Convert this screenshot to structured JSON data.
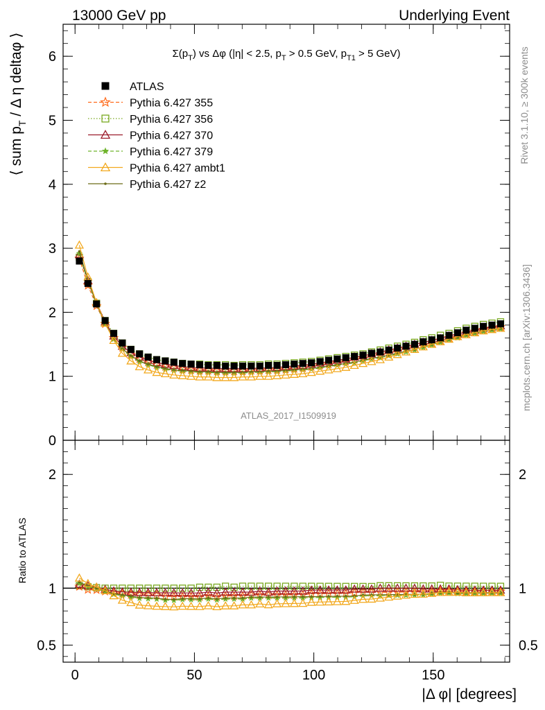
{
  "header": {
    "left": "13000 GeV pp",
    "right": "Underlying Event"
  },
  "side_labels": {
    "rivet": "Rivet 3.1.10, ≥ 300k events",
    "mcplots": "mcplots.cern.ch [arXiv:1306.3436]"
  },
  "watermark": "ATLAS_2017_I1509919",
  "colors": {
    "ATLAS": "#000000",
    "s355": "#ff6a1a",
    "s356": "#78a81e",
    "s370": "#9b1b2a",
    "s379": "#6db32a",
    "ambt1": "#f2a81d",
    "z2": "#6b6b16"
  },
  "chart_data": [
    {
      "type": "scatter",
      "title": "Σ(p_T) vs Δφ (|η| < 2.5, p_T > 0.5 GeV, p_T1 > 5 GeV)",
      "title_parts": {
        "t1": "Σ(p",
        "t1sub": "T",
        "t2": ") vs Δφ (|η| < 2.5, p",
        "t2sub": "T",
        "t3": " > 0.5 GeV, p",
        "t3sub": "T1",
        "t4": " > 5 GeV)"
      },
      "ylabel": "⟨ sum p_T / Δ η deltaφ ⟩",
      "ylabel_parts": {
        "a": "⟨ sum p",
        "sub": "T",
        "b": " / Δ η deltaφ ⟩"
      },
      "xlim": [
        -5,
        182
      ],
      "ylim": [
        0,
        6.5
      ],
      "yticks": [
        {
          "value": 0,
          "label": "0"
        },
        {
          "value": 1,
          "label": "1"
        },
        {
          "value": 2,
          "label": "2"
        },
        {
          "value": 3,
          "label": "3"
        },
        {
          "value": 4,
          "label": "4"
        },
        {
          "value": 5,
          "label": "5"
        },
        {
          "value": 6,
          "label": "6"
        }
      ],
      "legend_position": "top-left",
      "legend": [
        {
          "key": "ATLAS",
          "label": "ATLAS"
        },
        {
          "key": "s355",
          "label": "Pythia 6.427 355"
        },
        {
          "key": "s356",
          "label": "Pythia 6.427 356"
        },
        {
          "key": "s370",
          "label": "Pythia 6.427 370"
        },
        {
          "key": "s379",
          "label": "Pythia 6.427 379"
        },
        {
          "key": "ambt1",
          "label": "Pythia 6.427 ambt1"
        },
        {
          "key": "z2",
          "label": "Pythia 6.427 z2"
        }
      ],
      "x": [
        1.8,
        5.4,
        9.0,
        12.6,
        16.2,
        19.8,
        23.4,
        27.0,
        30.6,
        34.2,
        37.8,
        41.4,
        45.0,
        48.6,
        52.2,
        55.8,
        59.4,
        63.0,
        66.6,
        70.2,
        73.8,
        77.4,
        81.0,
        84.6,
        88.2,
        91.8,
        95.4,
        99.0,
        102.6,
        106.2,
        109.8,
        113.4,
        117.0,
        120.6,
        124.2,
        127.8,
        131.4,
        135.0,
        138.6,
        142.2,
        145.8,
        149.4,
        153.0,
        156.6,
        160.2,
        163.8,
        167.4,
        171.0,
        174.6,
        178.2
      ],
      "series": [
        {
          "key": "ATLAS",
          "name": "ATLAS",
          "marker": "square-filled",
          "line": "none",
          "values": [
            2.8,
            2.45,
            2.13,
            1.87,
            1.67,
            1.52,
            1.42,
            1.35,
            1.3,
            1.26,
            1.24,
            1.22,
            1.2,
            1.19,
            1.18,
            1.17,
            1.17,
            1.16,
            1.16,
            1.16,
            1.16,
            1.16,
            1.17,
            1.17,
            1.18,
            1.19,
            1.2,
            1.21,
            1.23,
            1.25,
            1.27,
            1.29,
            1.31,
            1.33,
            1.36,
            1.38,
            1.41,
            1.44,
            1.47,
            1.5,
            1.54,
            1.57,
            1.6,
            1.64,
            1.68,
            1.72,
            1.75,
            1.78,
            1.8,
            1.82
          ]
        },
        {
          "key": "s355",
          "name": "Pythia 6.427 355",
          "marker": "star-open",
          "line": "dashed",
          "values": [
            2.84,
            2.42,
            2.1,
            1.82,
            1.6,
            1.45,
            1.34,
            1.27,
            1.22,
            1.18,
            1.15,
            1.13,
            1.11,
            1.1,
            1.09,
            1.09,
            1.08,
            1.08,
            1.08,
            1.08,
            1.09,
            1.09,
            1.1,
            1.1,
            1.11,
            1.12,
            1.13,
            1.15,
            1.17,
            1.19,
            1.21,
            1.23,
            1.26,
            1.28,
            1.31,
            1.33,
            1.36,
            1.39,
            1.42,
            1.45,
            1.49,
            1.52,
            1.56,
            1.6,
            1.63,
            1.67,
            1.7,
            1.73,
            1.75,
            1.77
          ]
        },
        {
          "key": "s356",
          "name": "Pythia 6.427 356",
          "marker": "square-open",
          "line": "dotted",
          "values": [
            2.86,
            2.48,
            2.14,
            1.87,
            1.67,
            1.52,
            1.42,
            1.35,
            1.3,
            1.26,
            1.24,
            1.22,
            1.2,
            1.19,
            1.19,
            1.18,
            1.18,
            1.18,
            1.17,
            1.18,
            1.18,
            1.18,
            1.19,
            1.19,
            1.2,
            1.21,
            1.22,
            1.23,
            1.25,
            1.27,
            1.29,
            1.31,
            1.33,
            1.35,
            1.38,
            1.41,
            1.44,
            1.47,
            1.5,
            1.53,
            1.57,
            1.6,
            1.64,
            1.67,
            1.71,
            1.75,
            1.78,
            1.81,
            1.83,
            1.85
          ]
        },
        {
          "key": "s370",
          "name": "Pythia 6.427 370",
          "marker": "triangle-open",
          "line": "solid",
          "values": [
            2.9,
            2.5,
            2.15,
            1.85,
            1.63,
            1.47,
            1.37,
            1.3,
            1.25,
            1.21,
            1.19,
            1.17,
            1.15,
            1.14,
            1.13,
            1.13,
            1.12,
            1.12,
            1.12,
            1.12,
            1.12,
            1.13,
            1.13,
            1.14,
            1.15,
            1.16,
            1.17,
            1.19,
            1.21,
            1.23,
            1.25,
            1.27,
            1.3,
            1.32,
            1.35,
            1.38,
            1.41,
            1.44,
            1.47,
            1.5,
            1.53,
            1.56,
            1.59,
            1.63,
            1.66,
            1.69,
            1.72,
            1.75,
            1.77,
            1.79
          ]
        },
        {
          "key": "s379",
          "name": "Pythia 6.427 379",
          "marker": "star-filled",
          "line": "dashed",
          "values": [
            2.92,
            2.48,
            2.12,
            1.82,
            1.58,
            1.42,
            1.31,
            1.23,
            1.18,
            1.14,
            1.11,
            1.09,
            1.08,
            1.07,
            1.06,
            1.06,
            1.05,
            1.05,
            1.05,
            1.05,
            1.06,
            1.06,
            1.07,
            1.07,
            1.08,
            1.09,
            1.1,
            1.11,
            1.13,
            1.15,
            1.17,
            1.19,
            1.21,
            1.24,
            1.27,
            1.29,
            1.32,
            1.35,
            1.38,
            1.41,
            1.45,
            1.49,
            1.53,
            1.57,
            1.6,
            1.64,
            1.67,
            1.7,
            1.72,
            1.74
          ]
        },
        {
          "key": "ambt1",
          "name": "Pythia 6.427 ambt1",
          "marker": "triangle-open",
          "line": "solid",
          "values": [
            3.05,
            2.55,
            2.15,
            1.83,
            1.56,
            1.36,
            1.24,
            1.15,
            1.1,
            1.06,
            1.04,
            1.02,
            1.01,
            1.0,
            0.99,
            0.99,
            0.98,
            0.98,
            0.98,
            0.99,
            0.99,
            1.0,
            1.0,
            1.01,
            1.02,
            1.03,
            1.04,
            1.06,
            1.08,
            1.1,
            1.12,
            1.14,
            1.17,
            1.2,
            1.23,
            1.26,
            1.3,
            1.34,
            1.38,
            1.42,
            1.46,
            1.5,
            1.54,
            1.58,
            1.62,
            1.65,
            1.68,
            1.71,
            1.73,
            1.75
          ]
        },
        {
          "key": "z2",
          "name": "Pythia 6.427 z2",
          "marker": "dot",
          "line": "solid",
          "values": [
            2.95,
            2.5,
            2.13,
            1.83,
            1.59,
            1.43,
            1.32,
            1.24,
            1.19,
            1.15,
            1.12,
            1.1,
            1.09,
            1.08,
            1.07,
            1.07,
            1.06,
            1.06,
            1.06,
            1.06,
            1.07,
            1.07,
            1.08,
            1.08,
            1.09,
            1.1,
            1.11,
            1.12,
            1.14,
            1.16,
            1.18,
            1.2,
            1.22,
            1.25,
            1.28,
            1.3,
            1.33,
            1.36,
            1.39,
            1.42,
            1.46,
            1.5,
            1.54,
            1.58,
            1.61,
            1.65,
            1.68,
            1.71,
            1.73,
            1.75
          ]
        }
      ]
    },
    {
      "type": "scatter",
      "title": "",
      "ylabel": "Ratio to ATLAS",
      "xlabel": "|Δ φ| [degrees]",
      "xlim": [
        -5,
        182
      ],
      "ylim": [
        0.35,
        2.3
      ],
      "reference_line": 1,
      "xticks": [
        {
          "value": 0,
          "label": "0"
        },
        {
          "value": 50,
          "label": "50"
        },
        {
          "value": 100,
          "label": "100"
        },
        {
          "value": 150,
          "label": "150"
        }
      ],
      "yticks": [
        {
          "value": 0.5,
          "label": "0.5"
        },
        {
          "value": 1,
          "label": "1"
        },
        {
          "value": 2,
          "label": "2"
        }
      ],
      "note": "ratio series = model / ATLAS, computed from the main panel values"
    }
  ]
}
